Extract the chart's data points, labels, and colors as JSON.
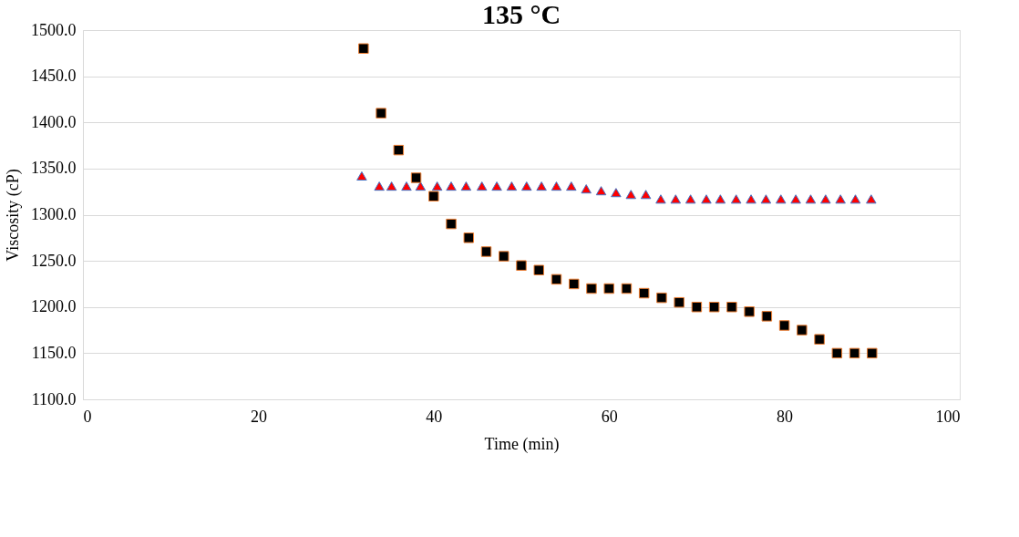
{
  "chart_data": {
    "type": "scatter",
    "title": "135 °C",
    "xlabel": "Time (min)",
    "ylabel": "Viscosity (cP)",
    "xlim": [
      0,
      100
    ],
    "xticks": [
      0,
      20,
      40,
      60,
      80,
      100
    ],
    "ylim": [
      1100,
      1500
    ],
    "yticks": [
      {
        "value": 1100,
        "label": "1100.0"
      },
      {
        "value": 1150,
        "label": "1150.0"
      },
      {
        "value": 1200,
        "label": "1200.0"
      },
      {
        "value": 1250,
        "label": "1250.0"
      },
      {
        "value": 1300,
        "label": "1300.0"
      },
      {
        "value": 1350,
        "label": "1350.0"
      },
      {
        "value": 1400,
        "label": "1400.0"
      },
      {
        "value": 1450,
        "label": "1450.0"
      },
      {
        "value": 1500,
        "label": "1500.0"
      }
    ],
    "grid": "y",
    "series": [
      {
        "color": "#ff0000",
        "marker": "triangle",
        "x": [
          31.8,
          33.8,
          35.2,
          36.9,
          38.5,
          40.4,
          42.0,
          43.7,
          45.5,
          47.2,
          48.9,
          50.6,
          52.3,
          54.0,
          55.7,
          57.4,
          59.1,
          60.8,
          62.5,
          64.2,
          65.9,
          67.6,
          69.3,
          71.1,
          72.7,
          74.5,
          76.2,
          77.9,
          79.6,
          81.3,
          83.0,
          84.7,
          86.4,
          88.1,
          89.9
        ],
        "values": [
          1342,
          1331,
          1331,
          1331,
          1331,
          1331,
          1331,
          1331,
          1331,
          1331,
          1331,
          1331,
          1331,
          1331,
          1331,
          1328,
          1326,
          1324,
          1322,
          1322,
          1317,
          1317,
          1317,
          1317,
          1317,
          1317,
          1317,
          1317,
          1317,
          1317,
          1317,
          1317,
          1317,
          1317,
          1317
        ]
      },
      {
        "color": "#000000",
        "marker": "square",
        "x": [
          32,
          34,
          36,
          38,
          40,
          42,
          44,
          46,
          48,
          50,
          52,
          54,
          56,
          58,
          60,
          62,
          64,
          66,
          68,
          70,
          72,
          74,
          76,
          78,
          80,
          82,
          84,
          86,
          88,
          90
        ],
        "values": [
          1480,
          1410,
          1370,
          1340,
          1320,
          1290,
          1275,
          1260,
          1255,
          1245,
          1240,
          1230,
          1225,
          1220,
          1220,
          1220,
          1215,
          1210,
          1205,
          1200,
          1200,
          1200,
          1195,
          1190,
          1180,
          1175,
          1165,
          1150,
          1150,
          1150
        ]
      }
    ]
  }
}
